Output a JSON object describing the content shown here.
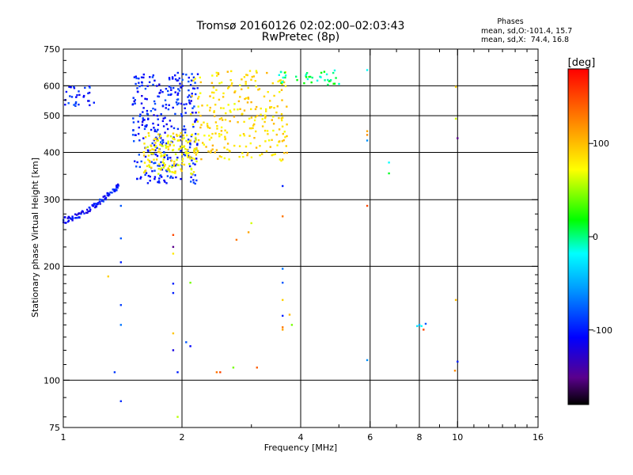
{
  "header": {
    "title_line1": "Tromsø 20160126 02:02:00–02:03:43",
    "title_line2": "RwPretec (8p)"
  },
  "stats": {
    "heading": "Phases",
    "line_o": "mean, sd,O:-101.4, 15.7",
    "line_x": "mean, sd,X:  74.4, 16.8"
  },
  "colorbar": {
    "label": "[deg]",
    "ticks": [
      {
        "value": 100,
        "label": "100"
      },
      {
        "value": 0,
        "label": "0"
      },
      {
        "value": -100,
        "label": "-100"
      }
    ],
    "range": [
      -180,
      180
    ]
  },
  "chart_data": {
    "type": "scatter",
    "xlabel": "Frequency [MHz]",
    "ylabel": "Stationary phase Virtual Height [km]",
    "x_scale": "log",
    "y_scale": "log",
    "xlim": [
      1,
      16
    ],
    "ylim": [
      75,
      750
    ],
    "x_ticks": [
      1,
      2,
      4,
      6,
      8,
      10,
      16
    ],
    "y_ticks": [
      75,
      100,
      200,
      300,
      400,
      500,
      600,
      750
    ],
    "x_minor_ticks": [
      3,
      5,
      7,
      9,
      11,
      12,
      13,
      14,
      15
    ],
    "y_minor_ticks": [
      80,
      90,
      110,
      120,
      130,
      140,
      150,
      160,
      170,
      180,
      190,
      225,
      250,
      275,
      350,
      450,
      550,
      650,
      700
    ],
    "grid": true,
    "grid_x": [
      2,
      4,
      6,
      8,
      10
    ],
    "grid_y": [
      100,
      200,
      300,
      400,
      500,
      600
    ],
    "color_variable": "phase (deg)",
    "point_groups": [
      {
        "name": "O-trace low",
        "f_range": [
          1.0,
          1.4
        ],
        "h_range": [
          265,
          330
        ],
        "phase": -105,
        "n": 90,
        "trace": "curve"
      },
      {
        "name": "O-trace F2 spread",
        "f_range": [
          1.5,
          2.2
        ],
        "h_range": [
          330,
          650
        ],
        "phase": -100,
        "n": 320
      },
      {
        "name": "O upper",
        "f_range": [
          1.0,
          1.2
        ],
        "h_range": [
          530,
          600
        ],
        "phase": -100,
        "n": 30
      },
      {
        "name": "X-trace spread",
        "f_range": [
          1.6,
          2.2
        ],
        "h_range": [
          350,
          450
        ],
        "phase": 75,
        "n": 160
      },
      {
        "name": "X-trace F2",
        "f_range": [
          2.1,
          3.7
        ],
        "h_range": [
          380,
          660
        ],
        "phase": 85,
        "n": 260
      },
      {
        "name": "mixed top",
        "f_range": [
          3.5,
          5.2
        ],
        "h_range": [
          600,
          660
        ],
        "phase": 0,
        "n": 40
      }
    ],
    "isolated_points": [
      {
        "f": 1.35,
        "h": 105,
        "phase": -90
      },
      {
        "f": 1.4,
        "h": 88,
        "phase": -95
      },
      {
        "f": 1.4,
        "h": 140,
        "phase": -70
      },
      {
        "f": 1.4,
        "h": 158,
        "phase": -90
      },
      {
        "f": 1.4,
        "h": 205,
        "phase": -100
      },
      {
        "f": 1.4,
        "h": 237,
        "phase": -80
      },
      {
        "f": 1.4,
        "h": 289,
        "phase": -80
      },
      {
        "f": 1.3,
        "h": 188,
        "phase": 90
      },
      {
        "f": 1.9,
        "h": 242,
        "phase": 150
      },
      {
        "f": 1.9,
        "h": 225,
        "phase": -150
      },
      {
        "f": 1.9,
        "h": 216,
        "phase": 80
      },
      {
        "f": 1.9,
        "h": 180,
        "phase": -100
      },
      {
        "f": 1.9,
        "h": 170,
        "phase": -100
      },
      {
        "f": 1.9,
        "h": 133,
        "phase": 95
      },
      {
        "f": 1.9,
        "h": 120,
        "phase": -120
      },
      {
        "f": 1.95,
        "h": 105,
        "phase": -100
      },
      {
        "f": 1.95,
        "h": 80,
        "phase": 55
      },
      {
        "f": 2.1,
        "h": 123,
        "phase": -110
      },
      {
        "f": 2.1,
        "h": 181,
        "phase": 40
      },
      {
        "f": 2.05,
        "h": 126,
        "phase": -80
      },
      {
        "f": 2.45,
        "h": 105,
        "phase": 130
      },
      {
        "f": 2.5,
        "h": 105,
        "phase": 150
      },
      {
        "f": 2.7,
        "h": 108,
        "phase": 40
      },
      {
        "f": 3.1,
        "h": 108,
        "phase": 140
      },
      {
        "f": 2.75,
        "h": 235,
        "phase": 130
      },
      {
        "f": 2.95,
        "h": 246,
        "phase": 110
      },
      {
        "f": 3.0,
        "h": 260,
        "phase": 60
      },
      {
        "f": 3.6,
        "h": 138,
        "phase": 130
      },
      {
        "f": 3.6,
        "h": 136,
        "phase": 110
      },
      {
        "f": 3.6,
        "h": 148,
        "phase": -100
      },
      {
        "f": 3.6,
        "h": 163,
        "phase": 90
      },
      {
        "f": 3.6,
        "h": 181,
        "phase": -80
      },
      {
        "f": 3.6,
        "h": 197,
        "phase": -70
      },
      {
        "f": 3.6,
        "h": 271,
        "phase": 130
      },
      {
        "f": 3.6,
        "h": 326,
        "phase": -100
      },
      {
        "f": 3.75,
        "h": 149,
        "phase": 100
      },
      {
        "f": 3.8,
        "h": 140,
        "phase": 40
      },
      {
        "f": 5.9,
        "h": 113,
        "phase": -60
      },
      {
        "f": 5.9,
        "h": 289,
        "phase": 150
      },
      {
        "f": 5.9,
        "h": 430,
        "phase": -60
      },
      {
        "f": 5.9,
        "h": 445,
        "phase": 120
      },
      {
        "f": 5.9,
        "h": 455,
        "phase": 110
      },
      {
        "f": 5.9,
        "h": 660,
        "phase": -20
      },
      {
        "f": 6.7,
        "h": 352,
        "phase": 10
      },
      {
        "f": 6.7,
        "h": 376,
        "phase": -20
      },
      {
        "f": 7.9,
        "h": 139,
        "phase": -30
      },
      {
        "f": 8.0,
        "h": 140,
        "phase": -50
      },
      {
        "f": 8.1,
        "h": 139,
        "phase": -20
      },
      {
        "f": 8.3,
        "h": 141,
        "phase": -80
      },
      {
        "f": 8.2,
        "h": 136,
        "phase": 150
      },
      {
        "f": 9.85,
        "h": 106,
        "phase": 120
      },
      {
        "f": 9.9,
        "h": 163,
        "phase": 100
      },
      {
        "f": 9.9,
        "h": 491,
        "phase": 60
      },
      {
        "f": 9.9,
        "h": 596,
        "phase": 90
      },
      {
        "f": 10.0,
        "h": 112,
        "phase": -100
      },
      {
        "f": 10.0,
        "h": 436,
        "phase": -150
      }
    ]
  }
}
